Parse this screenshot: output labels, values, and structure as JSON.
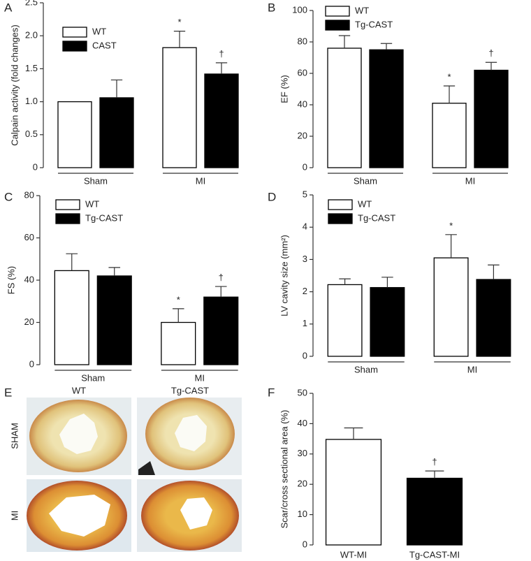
{
  "chart_data": [
    {
      "type": "bar",
      "panel_label": "A",
      "ylabel": "Calpain activity (fold changes)",
      "categories": [
        "Sham",
        "MI"
      ],
      "ylim": [
        0,
        2.5
      ],
      "yticks": [
        0,
        0.5,
        {
          "value": 1,
          "label": "1.0"
        },
        1.5,
        {
          "value": 2,
          "label": "2.0"
        },
        2.5
      ],
      "legend": "upper left",
      "series": [
        {
          "name": "WT",
          "color": "#ffffff",
          "values": [
            1.0,
            1.82
          ],
          "errors": [
            0,
            0.25
          ],
          "markers": [
            null,
            "*"
          ]
        },
        {
          "name": "CAST",
          "color": "#000000",
          "values": [
            1.06,
            1.42
          ],
          "errors": [
            0.27,
            0.17
          ],
          "markers": [
            null,
            "†"
          ]
        }
      ]
    },
    {
      "type": "bar",
      "panel_label": "B",
      "ylabel": "EF (%)",
      "categories": [
        "Sham",
        "MI"
      ],
      "ylim": [
        0,
        100
      ],
      "yticks": [
        0,
        20,
        40,
        60,
        80,
        100
      ],
      "legend": "upper left",
      "series": [
        {
          "name": "WT",
          "color": "#ffffff",
          "values": [
            76,
            41
          ],
          "errors": [
            8,
            11
          ],
          "markers": [
            null,
            "*"
          ]
        },
        {
          "name": "Tg-CAST",
          "color": "#000000",
          "values": [
            75,
            62
          ],
          "errors": [
            4,
            5
          ],
          "markers": [
            null,
            "†"
          ]
        }
      ]
    },
    {
      "type": "bar",
      "panel_label": "C",
      "ylabel": "FS (%)",
      "categories": [
        "Sham",
        "MI"
      ],
      "ylim": [
        0,
        80
      ],
      "yticks": [
        0,
        20,
        40,
        60,
        80
      ],
      "legend": "upper left",
      "series": [
        {
          "name": "WT",
          "color": "#ffffff",
          "values": [
            44.5,
            20
          ],
          "errors": [
            8,
            6.5
          ],
          "markers": [
            null,
            "*"
          ]
        },
        {
          "name": "Tg-CAST",
          "color": "#000000",
          "values": [
            42,
            32
          ],
          "errors": [
            4,
            5
          ],
          "markers": [
            null,
            "†"
          ]
        }
      ]
    },
    {
      "type": "bar",
      "panel_label": "D",
      "ylabel": "LV cavity size (mm²)",
      "categories": [
        "Sham",
        "MI"
      ],
      "ylim": [
        0,
        5
      ],
      "yticks": [
        0,
        1,
        2,
        3,
        4,
        5
      ],
      "legend": "upper left",
      "series": [
        {
          "name": "WT",
          "color": "#ffffff",
          "values": [
            2.22,
            3.05
          ],
          "errors": [
            0.18,
            0.72
          ],
          "markers": [
            null,
            "*"
          ]
        },
        {
          "name": "Tg-CAST",
          "color": "#000000",
          "values": [
            2.13,
            2.38
          ],
          "errors": [
            0.32,
            0.45
          ],
          "markers": [
            null,
            null
          ]
        }
      ]
    },
    {
      "type": "bar",
      "panel_label": "F",
      "ylabel": "Scar/cross sectional area (%)",
      "categories": [
        "WT-MI",
        "Tg-CAST-MI"
      ],
      "ylim": [
        0,
        50
      ],
      "yticks": [
        0,
        10,
        20,
        30,
        40,
        50
      ],
      "values": [
        34.8,
        22
      ],
      "errors": [
        3.8,
        2.4
      ],
      "colors": [
        "#ffffff",
        "#000000"
      ],
      "markers": [
        null,
        "†"
      ]
    }
  ],
  "image_panel": {
    "panel_label": "E",
    "columns": [
      "WT",
      "Tg-CAST"
    ],
    "rows": [
      "SHAM",
      "MI"
    ]
  }
}
